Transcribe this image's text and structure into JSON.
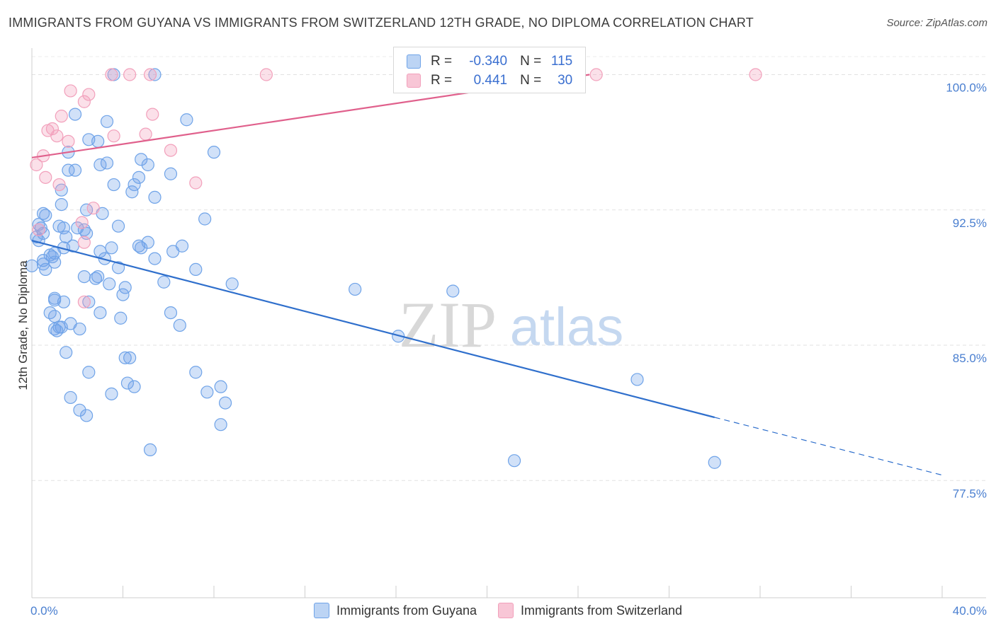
{
  "title": "IMMIGRANTS FROM GUYANA VS IMMIGRANTS FROM SWITZERLAND 12TH GRADE, NO DIPLOMA CORRELATION CHART",
  "source": "Source: ZipAtlas.com",
  "watermark": {
    "zip": "ZIP",
    "atlas": "atlas"
  },
  "legend": {
    "r_label": "R =",
    "n_label": "N =",
    "rows": [
      {
        "r": "-0.340",
        "n": "115"
      },
      {
        "r": "0.441",
        "n": "30"
      }
    ]
  },
  "chart_data": {
    "type": "scatter",
    "title": "IMMIGRANTS FROM GUYANA VS IMMIGRANTS FROM SWITZERLAND 12TH GRADE, NO DIPLOMA CORRELATION CHART",
    "xlabel": "",
    "ylabel": "12th Grade, No Diploma",
    "xlim": [
      0,
      40
    ],
    "ylim": [
      71,
      101
    ],
    "x_tick_labels": [
      "0.0%",
      "40.0%"
    ],
    "y_ticks": [
      77.5,
      85.0,
      92.5,
      100.0
    ],
    "y_tick_labels": [
      "77.5%",
      "85.0%",
      "92.5%",
      "100.0%"
    ],
    "grid": "horizontal dashed",
    "legend_position": "top-center",
    "series": [
      {
        "name": "Immigrants from Guyana",
        "color": "#6fa3e8",
        "line_color": "#2f6fcc",
        "trend": {
          "x0": 0,
          "y0": 90.8,
          "x1": 30,
          "y1": 81.0,
          "dashed_to_x": 40,
          "dashed_to_y": 77.8
        },
        "points": [
          [
            3.6,
            100
          ],
          [
            5.4,
            100
          ],
          [
            3.3,
            97.4
          ],
          [
            6.8,
            97.5
          ],
          [
            1.9,
            97.8
          ],
          [
            2.5,
            96.4
          ],
          [
            2.9,
            96.3
          ],
          [
            1.6,
            95.7
          ],
          [
            8.0,
            95.7
          ],
          [
            3.3,
            95.1
          ],
          [
            4.8,
            95.3
          ],
          [
            5.1,
            95.0
          ],
          [
            3.0,
            95.0
          ],
          [
            1.6,
            94.7
          ],
          [
            1.9,
            94.7
          ],
          [
            6.1,
            94.5
          ],
          [
            3.6,
            93.9
          ],
          [
            4.5,
            93.9
          ],
          [
            4.7,
            94.3
          ],
          [
            1.3,
            93.6
          ],
          [
            4.4,
            93.5
          ],
          [
            5.4,
            93.2
          ],
          [
            1.3,
            92.8
          ],
          [
            2.4,
            92.5
          ],
          [
            3.1,
            92.3
          ],
          [
            0.5,
            92.3
          ],
          [
            0.6,
            92.2
          ],
          [
            7.6,
            92.0
          ],
          [
            0.3,
            91.7
          ],
          [
            1.2,
            91.6
          ],
          [
            1.4,
            91.5
          ],
          [
            3.8,
            91.6
          ],
          [
            0.4,
            91.5
          ],
          [
            2.3,
            91.4
          ],
          [
            2.0,
            91.5
          ],
          [
            0.5,
            91.2
          ],
          [
            1.5,
            91.0
          ],
          [
            2.4,
            91.2
          ],
          [
            0.2,
            91.0
          ],
          [
            0.3,
            90.8
          ],
          [
            5.1,
            90.7
          ],
          [
            1.8,
            90.5
          ],
          [
            4.7,
            90.5
          ],
          [
            6.6,
            90.5
          ],
          [
            1.4,
            90.4
          ],
          [
            3.5,
            90.4
          ],
          [
            4.8,
            90.4
          ],
          [
            3.0,
            90.2
          ],
          [
            6.2,
            90.2
          ],
          [
            1.0,
            90.1
          ],
          [
            0.8,
            90.0
          ],
          [
            0.9,
            89.9
          ],
          [
            3.2,
            89.8
          ],
          [
            5.4,
            89.8
          ],
          [
            0.5,
            89.7
          ],
          [
            1.0,
            89.6
          ],
          [
            0.5,
            89.5
          ],
          [
            3.8,
            89.3
          ],
          [
            7.2,
            89.2
          ],
          [
            0.6,
            89.2
          ],
          [
            0.0,
            89.4
          ],
          [
            2.9,
            88.8
          ],
          [
            2.3,
            88.8
          ],
          [
            2.8,
            88.7
          ],
          [
            5.8,
            88.5
          ],
          [
            8.8,
            88.4
          ],
          [
            3.4,
            88.4
          ],
          [
            4.1,
            88.2
          ],
          [
            14.2,
            88.1
          ],
          [
            18.5,
            88.0
          ],
          [
            1.0,
            87.6
          ],
          [
            4.0,
            87.8
          ],
          [
            1.4,
            87.4
          ],
          [
            2.5,
            87.4
          ],
          [
            1.0,
            87.5
          ],
          [
            3.0,
            86.8
          ],
          [
            0.8,
            86.8
          ],
          [
            6.1,
            86.8
          ],
          [
            1.0,
            86.6
          ],
          [
            3.9,
            86.5
          ],
          [
            6.5,
            86.1
          ],
          [
            1.7,
            86.2
          ],
          [
            1.2,
            86.0
          ],
          [
            1.3,
            86.0
          ],
          [
            2.1,
            85.9
          ],
          [
            1.0,
            85.9
          ],
          [
            1.1,
            85.8
          ],
          [
            16.1,
            85.5
          ],
          [
            1.5,
            84.6
          ],
          [
            4.1,
            84.3
          ],
          [
            4.3,
            84.3
          ],
          [
            2.5,
            83.5
          ],
          [
            7.2,
            83.5
          ],
          [
            26.6,
            83.1
          ],
          [
            4.2,
            82.9
          ],
          [
            4.5,
            82.7
          ],
          [
            8.3,
            82.7
          ],
          [
            3.5,
            82.3
          ],
          [
            7.7,
            82.4
          ],
          [
            1.7,
            82.1
          ],
          [
            8.5,
            81.8
          ],
          [
            2.1,
            81.4
          ],
          [
            2.4,
            81.1
          ],
          [
            8.3,
            80.6
          ],
          [
            5.2,
            79.2
          ],
          [
            21.2,
            78.6
          ],
          [
            30.0,
            78.5
          ]
        ]
      },
      {
        "name": "Immigrants from Switzerland",
        "color": "#f2a0bb",
        "line_color": "#e0608c",
        "trend": {
          "x0": 0,
          "y0": 95.4,
          "x1": 24.5,
          "y1": 100.0
        },
        "points": [
          [
            3.5,
            100
          ],
          [
            4.3,
            100
          ],
          [
            5.2,
            100
          ],
          [
            10.3,
            100
          ],
          [
            18.3,
            100
          ],
          [
            24.8,
            100
          ],
          [
            31.8,
            100
          ],
          [
            1.7,
            99.1
          ],
          [
            2.5,
            98.9
          ],
          [
            2.3,
            98.5
          ],
          [
            5.3,
            97.8
          ],
          [
            1.3,
            97.7
          ],
          [
            0.9,
            97.0
          ],
          [
            0.7,
            96.9
          ],
          [
            1.1,
            96.6
          ],
          [
            3.6,
            96.6
          ],
          [
            5.0,
            96.7
          ],
          [
            1.6,
            96.3
          ],
          [
            6.1,
            95.8
          ],
          [
            0.5,
            95.5
          ],
          [
            0.2,
            95.0
          ],
          [
            0.6,
            94.3
          ],
          [
            7.2,
            94.0
          ],
          [
            1.2,
            93.9
          ],
          [
            2.7,
            92.6
          ],
          [
            2.2,
            91.8
          ],
          [
            0.3,
            91.4
          ],
          [
            2.3,
            90.7
          ],
          [
            2.3,
            87.4
          ]
        ]
      }
    ]
  }
}
